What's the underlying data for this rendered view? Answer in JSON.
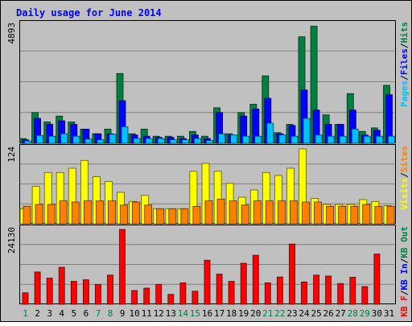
{
  "chart_data": {
    "type": "bar",
    "title": "Daily usage for June 2014",
    "categories": [
      "1",
      "2",
      "3",
      "4",
      "5",
      "6",
      "7",
      "8",
      "9",
      "10",
      "11",
      "12",
      "13",
      "14",
      "15",
      "16",
      "17",
      "18",
      "19",
      "20",
      "21",
      "22",
      "23",
      "24",
      "25",
      "26",
      "27",
      "28",
      "29",
      "30",
      "31"
    ],
    "weekend_days": [
      "1",
      "7",
      "8",
      "14",
      "15",
      "21",
      "22",
      "28",
      "29"
    ],
    "panels": [
      {
        "id": "top",
        "ymax_label": "4893",
        "ylim": [
          0,
          5000
        ],
        "legend": [
          {
            "label": "Pages",
            "color": "#00c0ff"
          },
          {
            "label": "/",
            "color": "#000000"
          },
          {
            "label": "Files",
            "color": "#0000ff"
          },
          {
            "label": "/",
            "color": "#000000"
          },
          {
            "label": "Hits",
            "color": "#008040"
          }
        ],
        "series": [
          {
            "name": "Hits",
            "color": "#008040",
            "values": [
              200,
              1300,
              900,
              1150,
              900,
              600,
              400,
              600,
              2950,
              400,
              600,
              300,
              300,
              300,
              500,
              300,
              1500,
              400,
              1300,
              1650,
              2850,
              450,
              800,
              4500,
              4950,
              1200,
              800,
              2100,
              500,
              650,
              2450
            ]
          },
          {
            "name": "Files",
            "color": "#0000ff",
            "values": [
              150,
              1050,
              800,
              950,
              800,
              600,
              400,
              400,
              1800,
              350,
              300,
              250,
              250,
              200,
              350,
              200,
              1300,
              350,
              1150,
              1450,
              1900,
              400,
              750,
              2250,
              1400,
              800,
              800,
              1400,
              350,
              550,
              2050
            ]
          },
          {
            "name": "Pages",
            "color": "#00c0ff",
            "values": [
              100,
              330,
              300,
              400,
              300,
              180,
              150,
              380,
              700,
              200,
              200,
              200,
              150,
              150,
              200,
              120,
              400,
              350,
              300,
              300,
              850,
              350,
              300,
              1050,
              350,
              300,
              300,
              600,
              300,
              300,
              300
            ]
          }
        ]
      },
      {
        "id": "middle",
        "ymax_label": "124",
        "ylim": [
          0,
          124
        ],
        "legend": [
          {
            "label": "Visits",
            "color": "#ffff00"
          },
          {
            "label": "/",
            "color": "#000000"
          },
          {
            "label": "Sites",
            "color": "#ff8000"
          }
        ],
        "series": [
          {
            "name": "Visits",
            "color": "#ffff00",
            "values": [
              25,
              62,
              85,
              85,
              92,
              105,
              78,
              70,
              52,
              37,
              47,
              25,
              25,
              25,
              87,
              100,
              87,
              67,
              44,
              56,
              85,
              80,
              92,
              124,
              42,
              32,
              32,
              32,
              40,
              37,
              30
            ]
          },
          {
            "name": "Sites",
            "color": "#ff8000",
            "values": [
              29,
              32,
              32,
              38,
              36,
              38,
              38,
              38,
              31,
              36,
              31,
              25,
              25,
              25,
              29,
              38,
              41,
              38,
              31,
              38,
              38,
              38,
              38,
              36,
              36,
              29,
              29,
              29,
              32,
              29,
              29
            ]
          }
        ]
      },
      {
        "id": "bottom",
        "ymax_label": "24130",
        "ylim": [
          0,
          24130
        ],
        "legend": [
          {
            "label": "KB F",
            "color": "#ff0000"
          },
          {
            "label": "/",
            "color": "#000000"
          },
          {
            "label": "KB In",
            "color": "#0000ff"
          },
          {
            "label": "/",
            "color": "#000000"
          },
          {
            "label": "KB Out",
            "color": "#008040"
          }
        ],
        "series": [
          {
            "name": "KB F",
            "color": "#ff0000",
            "values": [
              3700,
              10400,
              8400,
              11900,
              7400,
              7900,
              6400,
              9400,
              24130,
              4400,
              5200,
              6400,
              3200,
              6900,
              4200,
              14200,
              9700,
              7400,
              13200,
              15800,
              6900,
              8800,
              19400,
              7200,
              9400,
              9100,
              6700,
              8700,
              5700,
              16200,
              0
            ]
          }
        ]
      }
    ]
  }
}
